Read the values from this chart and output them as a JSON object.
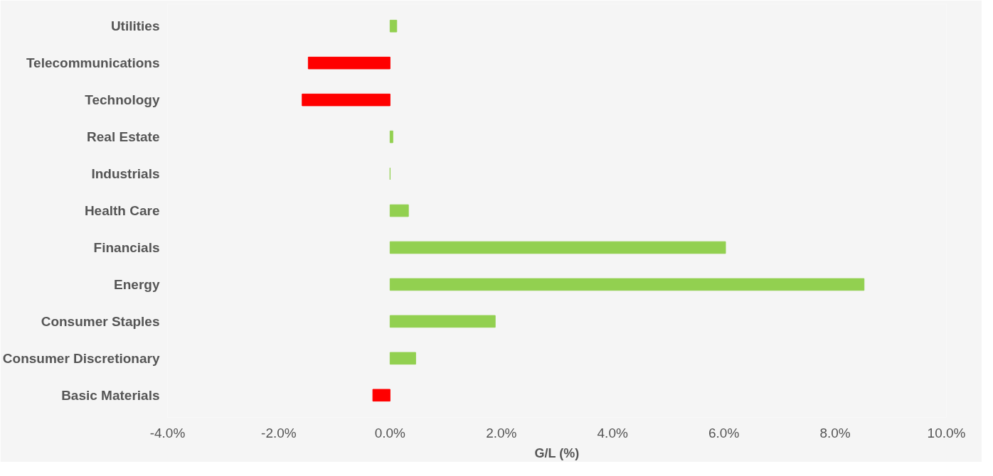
{
  "chart_data": {
    "type": "bar",
    "orientation": "horizontal",
    "xlabel": "G/L (%)",
    "categories": [
      "Utilities",
      "Telecommunications",
      "Technology",
      "Real Estate",
      "Industrials",
      "Health Care",
      "Financials",
      "Energy",
      "Consumer Staples",
      "Consumer Discretionary",
      "Basic Materials"
    ],
    "values": [
      0.12,
      -1.47,
      -1.58,
      0.05,
      0,
      0.33,
      6.03,
      8.52,
      1.89,
      0.46,
      -0.31
    ],
    "colors": [
      "#92d050",
      "#ff0000",
      "#ff0000",
      "#92d050",
      "#92d050",
      "#92d050",
      "#92d050",
      "#92d050",
      "#92d050",
      "#92d050",
      "#ff0000"
    ],
    "xlim": [
      -4,
      10
    ],
    "xticks": [
      {
        "value": -4,
        "label": "-4.0%"
      },
      {
        "value": -2,
        "label": "-2.0%"
      },
      {
        "value": 0,
        "label": "0.0%"
      },
      {
        "value": 2,
        "label": "2.0%"
      },
      {
        "value": 4,
        "label": "4.0%"
      },
      {
        "value": 6,
        "label": "6.0%"
      },
      {
        "value": 8,
        "label": "8.0%"
      },
      {
        "value": 10,
        "label": "10.0%"
      }
    ],
    "grid": false
  }
}
